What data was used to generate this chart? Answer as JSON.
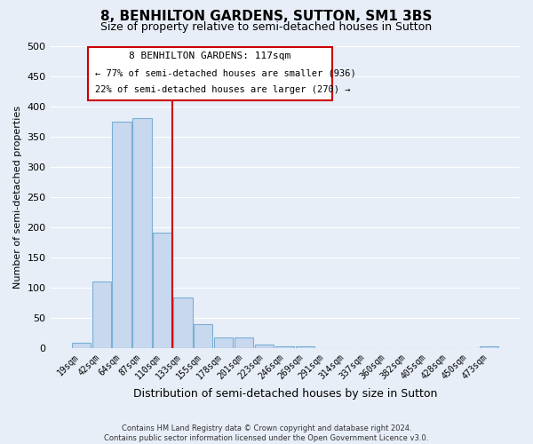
{
  "title": "8, BENHILTON GARDENS, SUTTON, SM1 3BS",
  "subtitle": "Size of property relative to semi-detached houses in Sutton",
  "xlabel": "Distribution of semi-detached houses by size in Sutton",
  "ylabel": "Number of semi-detached properties",
  "footer_line1": "Contains HM Land Registry data © Crown copyright and database right 2024.",
  "footer_line2": "Contains public sector information licensed under the Open Government Licence v3.0.",
  "bar_labels": [
    "19sqm",
    "42sqm",
    "64sqm",
    "87sqm",
    "110sqm",
    "133sqm",
    "155sqm",
    "178sqm",
    "201sqm",
    "223sqm",
    "246sqm",
    "269sqm",
    "291sqm",
    "314sqm",
    "337sqm",
    "360sqm",
    "382sqm",
    "405sqm",
    "428sqm",
    "450sqm",
    "473sqm"
  ],
  "bar_values": [
    8,
    110,
    375,
    380,
    190,
    83,
    40,
    18,
    18,
    6,
    2,
    2,
    0,
    0,
    0,
    0,
    0,
    0,
    0,
    0,
    3
  ],
  "bar_fill_color": "#c8d8ee",
  "bar_edge_color": "#7ab0d4",
  "vline_color": "#cc0000",
  "annotation_title": "8 BENHILTON GARDENS: 117sqm",
  "annotation_line1": "← 77% of semi-detached houses are smaller (936)",
  "annotation_line2": "22% of semi-detached houses are larger (270) →",
  "annotation_box_color": "#cc0000",
  "ylim": [
    0,
    500
  ],
  "yticks": [
    0,
    50,
    100,
    150,
    200,
    250,
    300,
    350,
    400,
    450,
    500
  ],
  "bg_color": "#e8eef8",
  "plot_bg_color": "#e8eef8",
  "grid_color": "#ffffff",
  "title_fontsize": 11,
  "subtitle_fontsize": 9,
  "ylabel_fontsize": 8,
  "xlabel_fontsize": 9
}
